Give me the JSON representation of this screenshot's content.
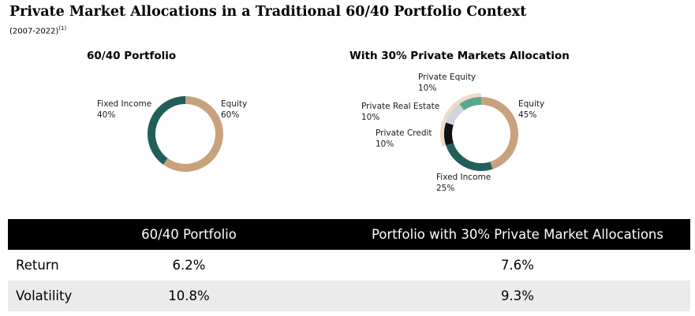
{
  "title": "Private Market Allocations in a Traditional 60/40 Portfolio Context",
  "subtitle": "(2007-2022)",
  "subtitle_note": "(1)",
  "chart_data": [
    {
      "type": "pie",
      "title": "60/40 Portfolio",
      "slices": [
        {
          "label": "Equity",
          "value": 60,
          "value_label": "60%",
          "color": "#c8a27c"
        },
        {
          "label": "Fixed Income",
          "value": 40,
          "value_label": "40%",
          "color": "#225f5a"
        }
      ]
    },
    {
      "type": "pie",
      "title": "With 30% Private Markets Allocation",
      "slices": [
        {
          "label": "Equity",
          "value": 45,
          "value_label": "45%",
          "color": "#c8a27c"
        },
        {
          "label": "Fixed Income",
          "value": 25,
          "value_label": "25%",
          "color": "#225f5a"
        },
        {
          "label": "Private Credit",
          "value": 10,
          "value_label": "10%",
          "color": "#111111"
        },
        {
          "label": "Private Real Estate",
          "value": 10,
          "value_label": "10%",
          "color": "#d0d5db"
        },
        {
          "label": "Private Equity",
          "value": 10,
          "value_label": "10%",
          "color": "#5aa88f"
        }
      ],
      "private_band_color": "#eedcc9"
    }
  ],
  "table": {
    "headers": [
      "",
      "60/40 Portfolio",
      "Portfolio with 30% Private Market Allocations"
    ],
    "rows": [
      {
        "label": "Return",
        "values": [
          "6.2%",
          "7.6%"
        ]
      },
      {
        "label": "Volatility",
        "values": [
          "10.8%",
          "9.3%"
        ]
      }
    ]
  }
}
